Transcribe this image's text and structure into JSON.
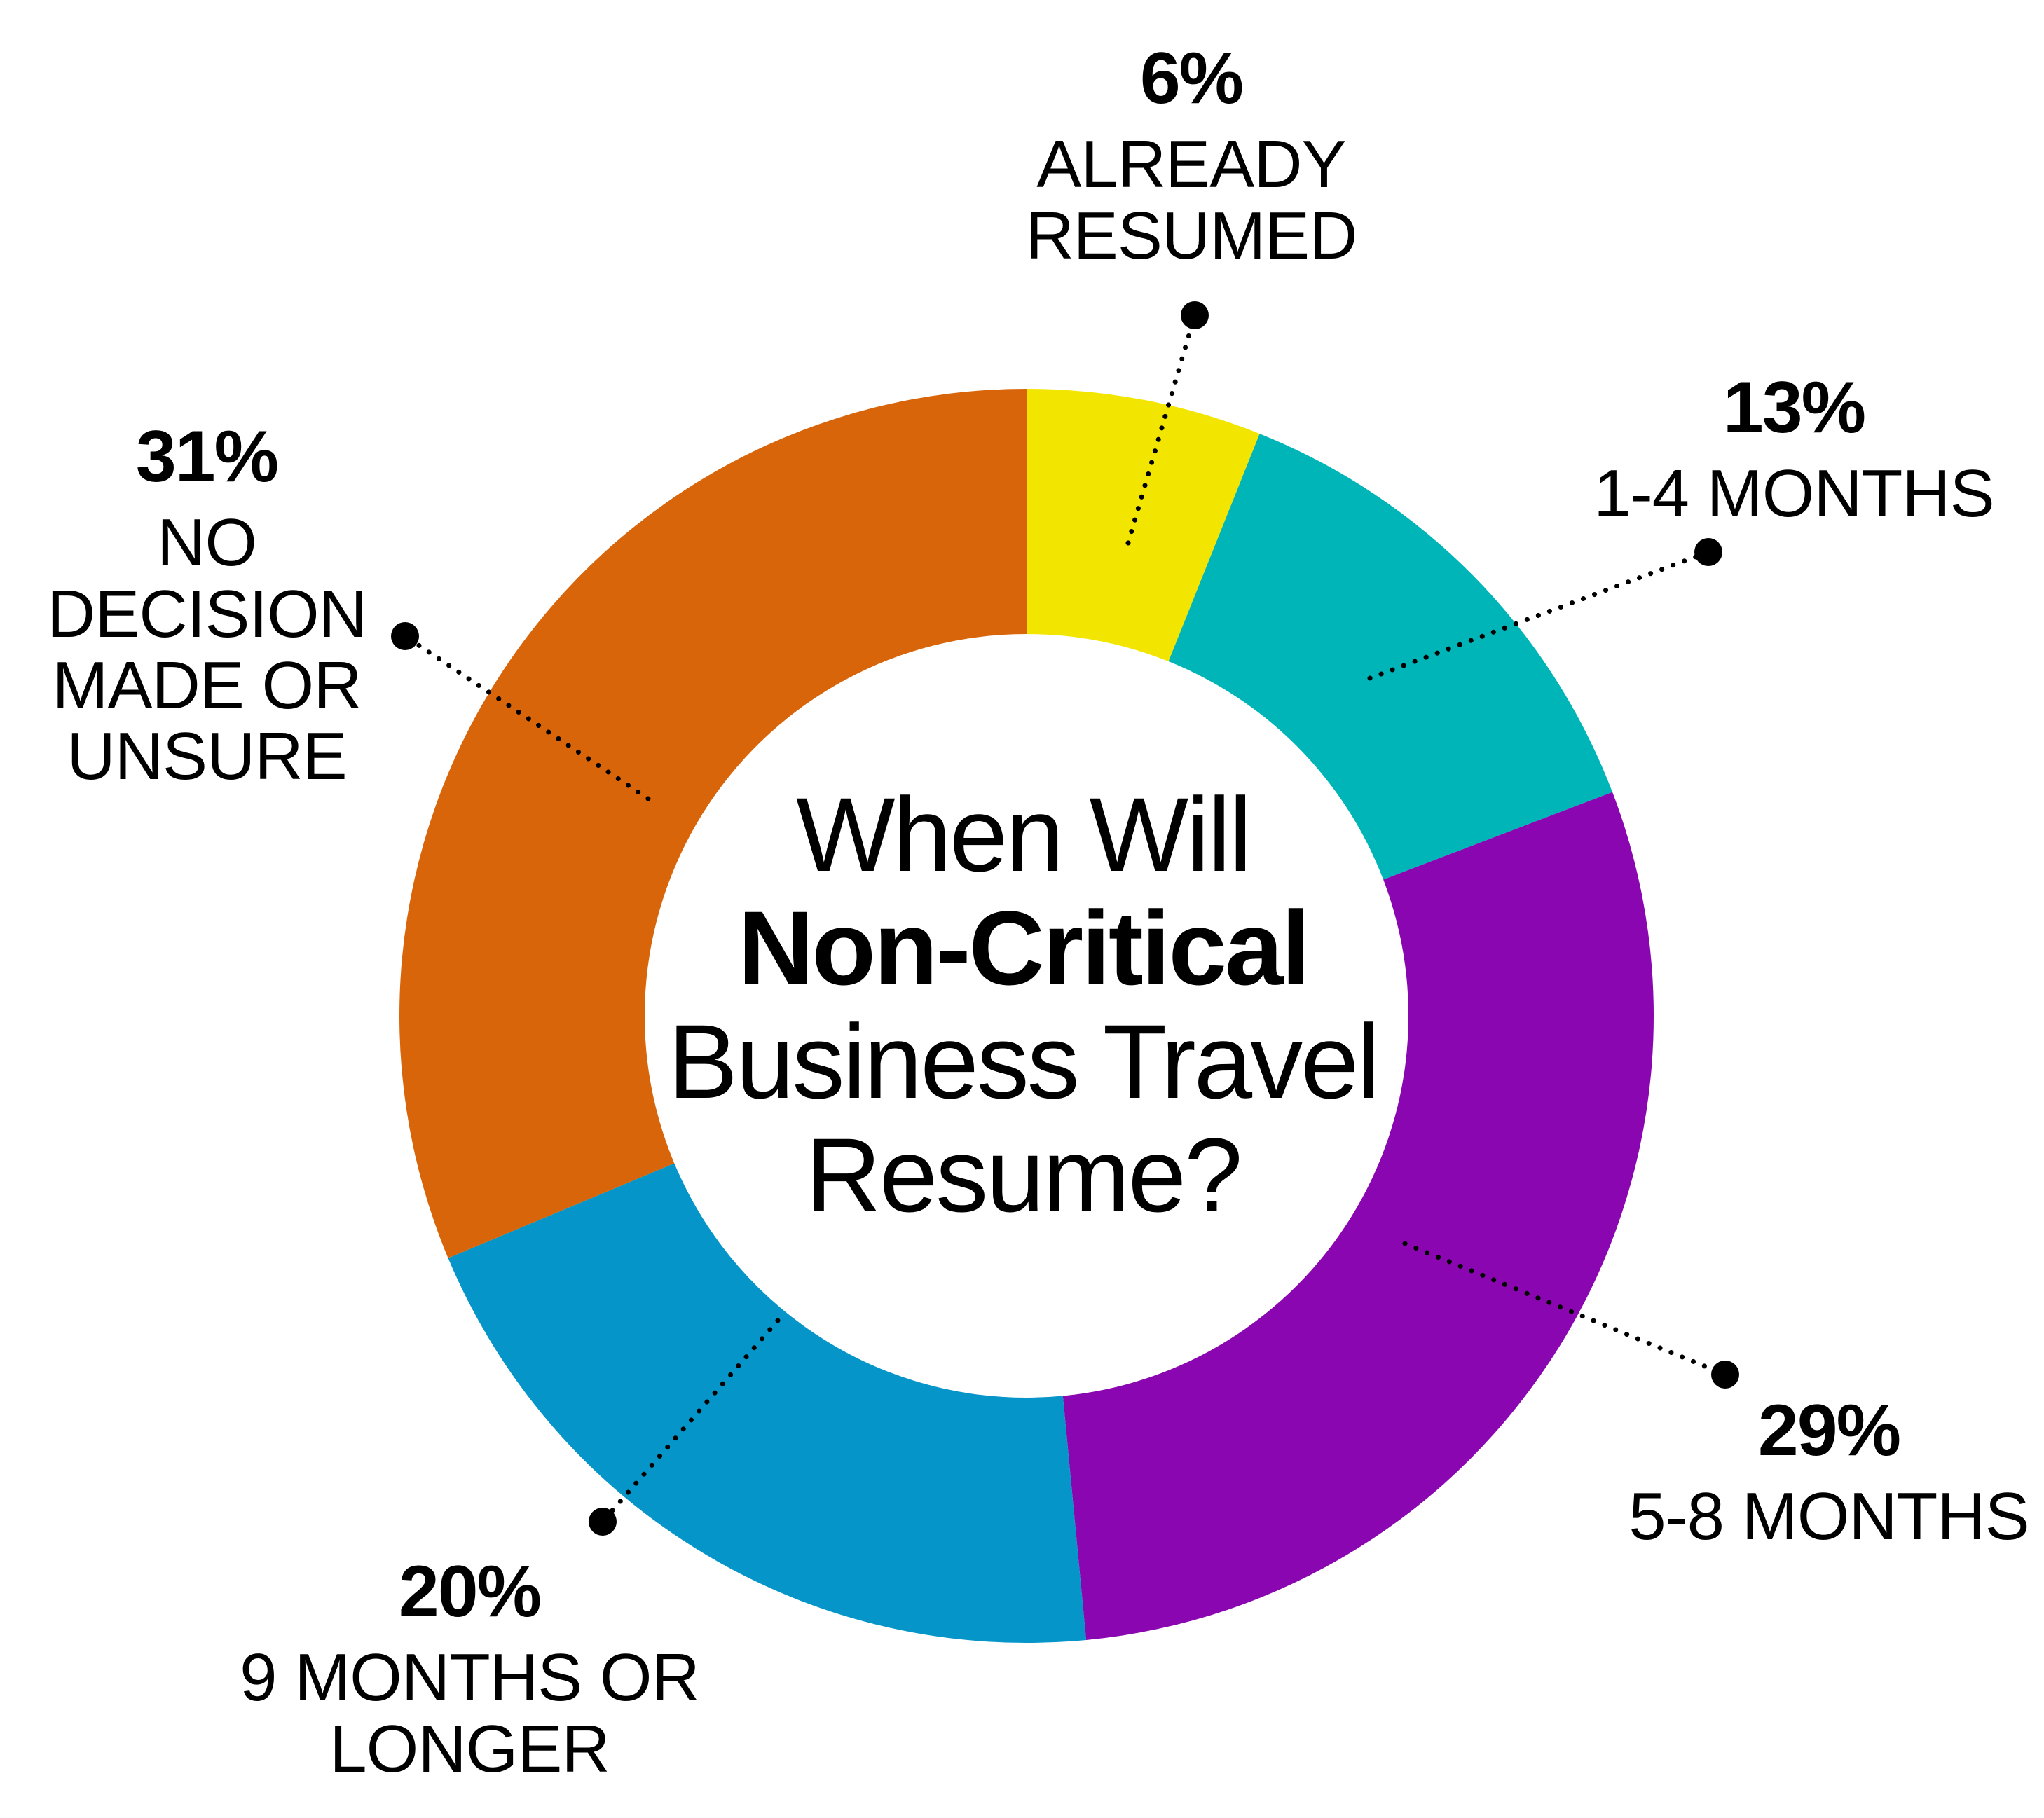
{
  "chart_data": {
    "type": "pie",
    "variant": "donut",
    "title_lines": [
      {
        "text": "When Will",
        "bold": false
      },
      {
        "text": "Non-Critical",
        "bold": true
      },
      {
        "text": "Business Travel",
        "bold": false
      },
      {
        "text": "Resume?",
        "bold": false
      }
    ],
    "slices": [
      {
        "value": 6,
        "pct_label": "6%",
        "label": "ALREADY\nRESUMED",
        "color": "#f2e600"
      },
      {
        "value": 13,
        "pct_label": "13%",
        "label": "1-4 MONTHS",
        "color": "#00b5b8"
      },
      {
        "value": 29,
        "pct_label": "29%",
        "label": "5-8 MONTHS",
        "color": "#8a06b0"
      },
      {
        "value": 20,
        "pct_label": "20%",
        "label": "9 MONTHS OR\nLONGER",
        "color": "#0595c8"
      },
      {
        "value": 31,
        "pct_label": "31%",
        "label": "NO DECISION\nMADE OR\nUNSURE",
        "color": "#d9650a"
      }
    ],
    "start": "12 o'clock",
    "direction": "clockwise",
    "legend": "callouts with dotted leader lines"
  }
}
